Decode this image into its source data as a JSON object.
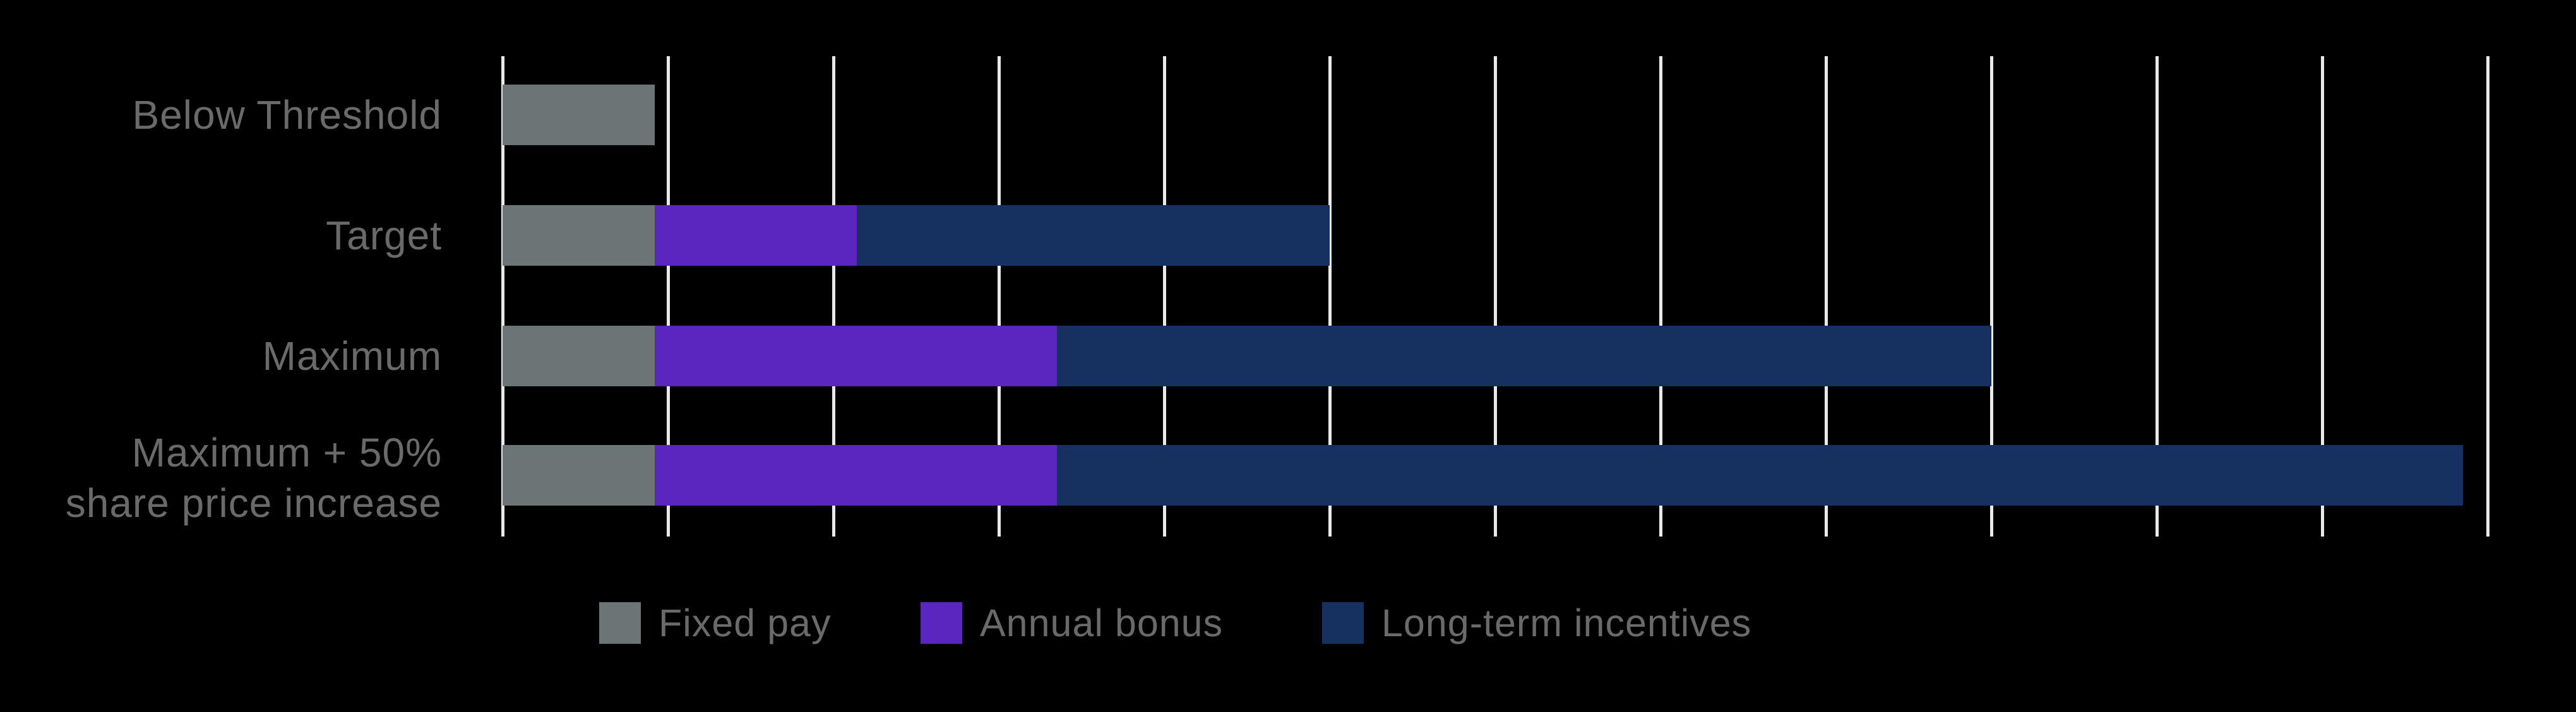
{
  "chart_data": {
    "type": "bar",
    "orientation": "horizontal",
    "stacked": true,
    "title": "",
    "categories": [
      "Below Threshold",
      "Target",
      "Maximum",
      "Maximum + 50% share price increase"
    ],
    "category_label_lines": [
      [
        "Below Threshold"
      ],
      [
        "Target"
      ],
      [
        "Maximum"
      ],
      [
        "Maximum + 50%",
        "share price increase"
      ]
    ],
    "series": [
      {
        "name": "Fixed pay",
        "color": "#6D7475",
        "values": [
          0.92,
          0.92,
          0.92,
          0.92
        ]
      },
      {
        "name": "Annual bonus",
        "color": "#5B26C0",
        "values": [
          0,
          1.22,
          2.43,
          2.43
        ]
      },
      {
        "name": "Long-term incentives",
        "color": "#16305F",
        "values": [
          0,
          2.86,
          5.65,
          8.5
        ]
      }
    ],
    "row_totals": [
      0.92,
      5.0,
      9.0,
      11.85
    ],
    "x_axis": {
      "min": 0,
      "max": 12,
      "gridline_interval": 1,
      "tick_labels_visible": false
    },
    "grid": true,
    "legend_position": "bottom"
  },
  "legend": {
    "items": [
      {
        "label": "Fixed pay",
        "color": "#6D7475"
      },
      {
        "label": "Annual bonus",
        "color": "#5B26C0"
      },
      {
        "label": "Long-term incentives",
        "color": "#16305F"
      }
    ]
  },
  "colors": {
    "background": "#000000",
    "gridline": "#E9E9E9",
    "label_text": "#6A6A6A"
  }
}
